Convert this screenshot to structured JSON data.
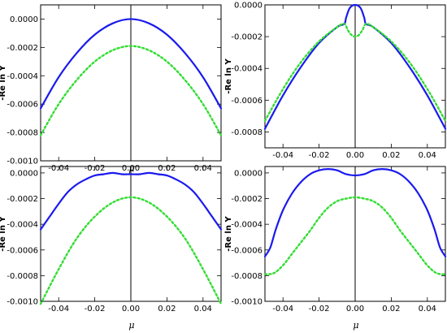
{
  "chart_data": [
    {
      "type": "line",
      "xlabel": "μ",
      "ylabel": "-Re ln Y",
      "xlim": [
        -0.05,
        0.05
      ],
      "ylim": [
        -0.001,
        0.0001
      ],
      "x_ticks": [
        "-0.04",
        "-0.02",
        "0.00",
        "0.02",
        "0.04"
      ],
      "y_ticks": [
        "0.0000",
        "-0.0002",
        "-0.0004",
        "-0.0006",
        "-0.0008",
        "-0.0010"
      ],
      "series": [
        {
          "style": "solid",
          "color": "#1a1aee",
          "x": [
            -0.05,
            -0.04,
            -0.03,
            -0.02,
            -0.01,
            0.0,
            0.01,
            0.02,
            0.03,
            0.04,
            0.05
          ],
          "y": [
            -0.00063,
            -0.00041,
            -0.00024,
            -0.00011,
            -3e-05,
            0.0,
            -3e-05,
            -0.00011,
            -0.00024,
            -0.00041,
            -0.00063
          ]
        },
        {
          "style": "dotted",
          "color": "#33dd33",
          "x": [
            -0.05,
            -0.04,
            -0.03,
            -0.02,
            -0.01,
            0.0,
            0.01,
            0.02,
            0.03,
            0.04,
            0.05
          ],
          "y": [
            -0.00082,
            -0.0006,
            -0.00043,
            -0.0003,
            -0.00022,
            -0.00019,
            -0.00022,
            -0.0003,
            -0.00043,
            -0.0006,
            -0.00082
          ]
        }
      ]
    },
    {
      "type": "line",
      "xlabel": "",
      "ylabel": "-Re ln Y",
      "xlim": [
        -0.05,
        0.05
      ],
      "ylim": [
        -0.0009,
        0.0
      ],
      "x_ticks": [
        "-0.04",
        "-0.02",
        "0.00",
        "0.02",
        "0.04"
      ],
      "y_ticks": [
        "0.0000",
        "-0.0002",
        "-0.0004",
        "-0.0006",
        "-0.0008"
      ],
      "series": [
        {
          "style": "solid",
          "color": "#1a1aee",
          "x": [
            -0.05,
            -0.04,
            -0.03,
            -0.02,
            -0.01,
            -0.006,
            -0.005,
            -0.003,
            0.0,
            0.003,
            0.005,
            0.006,
            0.01,
            0.02,
            0.03,
            0.04,
            0.05
          ],
          "y": [
            -0.00078,
            -0.00057,
            -0.00039,
            -0.00024,
            -0.00014,
            -0.00012,
            -8e-05,
            -2e-05,
            0.0,
            -2e-05,
            -8e-05,
            -0.00012,
            -0.00014,
            -0.00024,
            -0.00039,
            -0.00057,
            -0.00078
          ]
        },
        {
          "style": "dotted",
          "color": "#33dd33",
          "x": [
            -0.05,
            -0.04,
            -0.03,
            -0.02,
            -0.01,
            -0.006,
            -0.004,
            -0.002,
            0.0,
            0.002,
            0.004,
            0.006,
            0.01,
            0.02,
            0.03,
            0.04,
            0.05
          ],
          "y": [
            -0.00073,
            -0.00053,
            -0.00036,
            -0.00023,
            -0.00014,
            -0.00012,
            -0.00016,
            -0.00019,
            -0.0002,
            -0.00019,
            -0.00016,
            -0.00012,
            -0.00014,
            -0.00023,
            -0.00036,
            -0.00053,
            -0.00073
          ]
        }
      ]
    },
    {
      "type": "line",
      "xlabel": "μ",
      "ylabel": "-Re ln Y",
      "xlim": [
        -0.05,
        0.05
      ],
      "ylim": [
        -0.001,
        5e-05
      ],
      "x_ticks": [
        "-0.04",
        "-0.02",
        "0.00",
        "0.02",
        "0.04"
      ],
      "y_ticks": [
        "0.0000",
        "-0.0002",
        "-0.0004",
        "-0.0006",
        "-0.0008",
        "-0.0010"
      ],
      "series": [
        {
          "style": "solid",
          "color": "#1a1aee",
          "x": [
            -0.05,
            -0.045,
            -0.04,
            -0.035,
            -0.03,
            -0.025,
            -0.02,
            -0.015,
            -0.01,
            -0.005,
            0.0,
            0.005,
            0.01,
            0.015,
            0.02,
            0.025,
            0.03,
            0.035,
            0.04,
            0.045,
            0.05
          ],
          "y": [
            -0.00044,
            -0.00034,
            -0.00024,
            -0.00015,
            -9e-05,
            -5e-05,
            -2e-05,
            -1e-05,
            0.0,
            -1e-05,
            -1e-05,
            -1e-05,
            0.0,
            -1e-05,
            -2e-05,
            -5e-05,
            -9e-05,
            -0.00015,
            -0.00024,
            -0.00034,
            -0.00044
          ]
        },
        {
          "style": "dotted",
          "color": "#33dd33",
          "x": [
            -0.05,
            -0.04,
            -0.03,
            -0.02,
            -0.01,
            0.0,
            0.01,
            0.02,
            0.03,
            0.04,
            0.05
          ],
          "y": [
            -0.00102,
            -0.00075,
            -0.00051,
            -0.00034,
            -0.00023,
            -0.00019,
            -0.00023,
            -0.00034,
            -0.00051,
            -0.00075,
            -0.00102
          ]
        }
      ]
    },
    {
      "type": "line",
      "xlabel": "μ",
      "ylabel": "-Re ln Y",
      "xlim": [
        -0.05,
        0.05
      ],
      "ylim": [
        -0.001,
        5e-05
      ],
      "x_ticks": [
        "-0.04",
        "-0.02",
        "0.00",
        "0.02",
        "0.04"
      ],
      "y_ticks": [
        "0.0000",
        "-0.0002",
        "-0.0004",
        "-0.0006",
        "-0.0008",
        "-0.0010"
      ],
      "series": [
        {
          "style": "solid",
          "color": "#1a1aee",
          "x": [
            -0.05,
            -0.047,
            -0.044,
            -0.04,
            -0.035,
            -0.03,
            -0.025,
            -0.02,
            -0.015,
            -0.01,
            -0.005,
            0.0,
            0.005,
            0.01,
            0.015,
            0.02,
            0.025,
            0.03,
            0.035,
            0.04,
            0.044,
            0.047,
            0.05
          ],
          "y": [
            -0.00065,
            -0.00058,
            -0.00044,
            -0.00029,
            -0.00016,
            -7e-05,
            -1e-05,
            2e-05,
            3e-05,
            2e-05,
            -1e-05,
            -2e-05,
            -1e-05,
            2e-05,
            3e-05,
            2e-05,
            -1e-05,
            -7e-05,
            -0.00016,
            -0.00029,
            -0.00044,
            -0.00058,
            -0.00065
          ]
        },
        {
          "style": "dotted",
          "color": "#33dd33",
          "x": [
            -0.05,
            -0.045,
            -0.04,
            -0.035,
            -0.03,
            -0.025,
            -0.02,
            -0.015,
            -0.01,
            -0.005,
            0.0,
            0.005,
            0.01,
            0.015,
            0.02,
            0.025,
            0.03,
            0.035,
            0.04,
            0.045,
            0.05
          ],
          "y": [
            -0.00079,
            -0.00078,
            -0.00072,
            -0.00063,
            -0.00054,
            -0.00045,
            -0.00035,
            -0.00027,
            -0.00022,
            -0.0002,
            -0.00019,
            -0.0002,
            -0.00022,
            -0.00027,
            -0.00035,
            -0.00045,
            -0.00054,
            -0.00063,
            -0.00072,
            -0.00078,
            -0.00079
          ]
        }
      ]
    }
  ]
}
